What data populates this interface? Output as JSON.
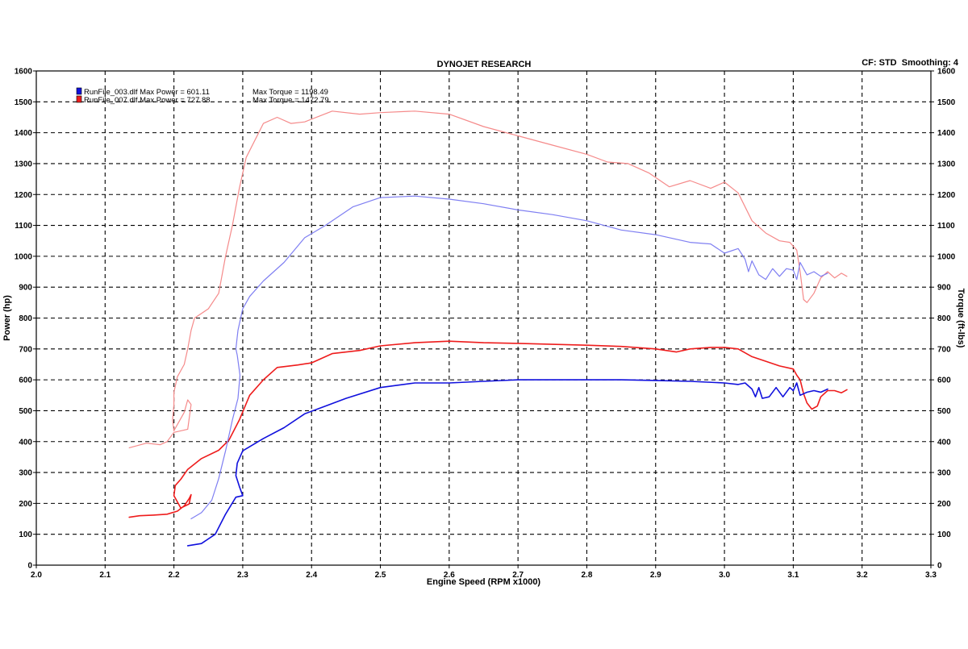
{
  "header": {
    "title": "DYNOJET RESEARCH",
    "corner_info": "CF: STD  Smoothing: 4"
  },
  "chart_data": {
    "type": "line",
    "title": "DYNOJET RESEARCH",
    "xlabel": "Engine Speed (RPM x1000)",
    "ylabel_left": "Power (hp)",
    "ylabel_right": "Torque (ft-lbs)",
    "xlim": [
      2.0,
      3.3
    ],
    "ylim": [
      0,
      1600
    ],
    "xticks": [
      "2.0",
      "2.1",
      "2.2",
      "2.3",
      "2.4",
      "2.5",
      "2.6",
      "2.7",
      "2.8",
      "2.9",
      "3.0",
      "3.1",
      "3.2",
      "3.3"
    ],
    "yticks": [
      "0",
      "100",
      "200",
      "300",
      "400",
      "500",
      "600",
      "700",
      "800",
      "900",
      "1000",
      "1100",
      "1200",
      "1300",
      "1400",
      "1500",
      "1600"
    ],
    "grid": true,
    "legend": {
      "placement": "top-left",
      "entries": [
        {
          "file": "RunFile_003.dlf",
          "power_text": "Max Power = 601.11",
          "torque_text": "Max Torque = 1198.49",
          "color": "#1010dd"
        },
        {
          "file": "RunFile_007.dlf",
          "power_text": "Max Power = 727.88",
          "torque_text": "Max Torque = 1472.79",
          "color": "#ee1c1c"
        }
      ]
    },
    "series": [
      {
        "run": "RunFile_007.dlf",
        "measure": "Power",
        "color": "#ee1c1c",
        "width": 1.6,
        "points": [
          [
            2.135,
            155
          ],
          [
            2.15,
            160
          ],
          [
            2.17,
            162
          ],
          [
            2.19,
            165
          ],
          [
            2.205,
            175
          ],
          [
            2.215,
            192
          ],
          [
            2.222,
            215
          ],
          [
            2.225,
            228
          ],
          [
            2.222,
            198
          ],
          [
            2.21,
            185
          ],
          [
            2.205,
            205
          ],
          [
            2.2,
            225
          ],
          [
            2.202,
            258
          ],
          [
            2.21,
            278
          ],
          [
            2.22,
            310
          ],
          [
            2.24,
            345
          ],
          [
            2.265,
            372
          ],
          [
            2.28,
            405
          ],
          [
            2.295,
            470
          ],
          [
            2.31,
            550
          ],
          [
            2.33,
            600
          ],
          [
            2.35,
            640
          ],
          [
            2.38,
            648
          ],
          [
            2.4,
            655
          ],
          [
            2.43,
            685
          ],
          [
            2.47,
            695
          ],
          [
            2.5,
            710
          ],
          [
            2.55,
            720
          ],
          [
            2.6,
            725
          ],
          [
            2.65,
            720
          ],
          [
            2.7,
            718
          ],
          [
            2.75,
            715
          ],
          [
            2.8,
            712
          ],
          [
            2.85,
            708
          ],
          [
            2.9,
            700
          ],
          [
            2.93,
            690
          ],
          [
            2.95,
            700
          ],
          [
            2.98,
            705
          ],
          [
            3.0,
            705
          ],
          [
            3.02,
            700
          ],
          [
            3.04,
            675
          ],
          [
            3.06,
            660
          ],
          [
            3.08,
            645
          ],
          [
            3.1,
            635
          ],
          [
            3.105,
            615
          ],
          [
            3.11,
            600
          ],
          [
            3.115,
            555
          ],
          [
            3.12,
            525
          ],
          [
            3.127,
            505
          ],
          [
            3.135,
            515
          ],
          [
            3.14,
            545
          ],
          [
            3.15,
            565
          ],
          [
            3.16,
            565
          ],
          [
            3.17,
            558
          ],
          [
            3.178,
            568
          ]
        ]
      },
      {
        "run": "RunFile_007.dlf",
        "measure": "Torque",
        "color": "#f58a8a",
        "width": 1.2,
        "points": [
          [
            2.135,
            380
          ],
          [
            2.16,
            395
          ],
          [
            2.18,
            390
          ],
          [
            2.19,
            400
          ],
          [
            2.2,
            430
          ],
          [
            2.22,
            440
          ],
          [
            2.225,
            520
          ],
          [
            2.22,
            535
          ],
          [
            2.215,
            495
          ],
          [
            2.2,
            435
          ],
          [
            2.198,
            470
          ],
          [
            2.2,
            520
          ],
          [
            2.2,
            560
          ],
          [
            2.205,
            610
          ],
          [
            2.215,
            650
          ],
          [
            2.22,
            700
          ],
          [
            2.225,
            760
          ],
          [
            2.23,
            800
          ],
          [
            2.25,
            830
          ],
          [
            2.265,
            880
          ],
          [
            2.275,
            1000
          ],
          [
            2.285,
            1100
          ],
          [
            2.295,
            1220
          ],
          [
            2.305,
            1320
          ],
          [
            2.33,
            1430
          ],
          [
            2.35,
            1450
          ],
          [
            2.37,
            1430
          ],
          [
            2.39,
            1435
          ],
          [
            2.43,
            1470
          ],
          [
            2.47,
            1460
          ],
          [
            2.5,
            1465
          ],
          [
            2.55,
            1470
          ],
          [
            2.6,
            1460
          ],
          [
            2.65,
            1420
          ],
          [
            2.7,
            1390
          ],
          [
            2.75,
            1360
          ],
          [
            2.8,
            1330
          ],
          [
            2.83,
            1305
          ],
          [
            2.86,
            1300
          ],
          [
            2.89,
            1270
          ],
          [
            2.92,
            1225
          ],
          [
            2.95,
            1245
          ],
          [
            2.98,
            1220
          ],
          [
            3.0,
            1240
          ],
          [
            3.02,
            1205
          ],
          [
            3.04,
            1115
          ],
          [
            3.06,
            1075
          ],
          [
            3.08,
            1050
          ],
          [
            3.095,
            1045
          ],
          [
            3.105,
            1020
          ],
          [
            3.11,
            950
          ],
          [
            3.115,
            860
          ],
          [
            3.12,
            850
          ],
          [
            3.13,
            880
          ],
          [
            3.14,
            930
          ],
          [
            3.15,
            950
          ],
          [
            3.16,
            930
          ],
          [
            3.17,
            945
          ],
          [
            3.178,
            935
          ]
        ]
      },
      {
        "run": "RunFile_003.dlf",
        "measure": "Power",
        "color": "#1010dd",
        "width": 1.6,
        "points": [
          [
            2.22,
            63
          ],
          [
            2.24,
            70
          ],
          [
            2.26,
            100
          ],
          [
            2.275,
            165
          ],
          [
            2.29,
            220
          ],
          [
            2.3,
            225
          ],
          [
            2.295,
            255
          ],
          [
            2.29,
            290
          ],
          [
            2.292,
            330
          ],
          [
            2.3,
            370
          ],
          [
            2.33,
            410
          ],
          [
            2.36,
            445
          ],
          [
            2.39,
            490
          ],
          [
            2.42,
            515
          ],
          [
            2.45,
            540
          ],
          [
            2.5,
            575
          ],
          [
            2.55,
            590
          ],
          [
            2.6,
            590
          ],
          [
            2.65,
            595
          ],
          [
            2.7,
            600
          ],
          [
            2.75,
            600
          ],
          [
            2.8,
            600
          ],
          [
            2.85,
            600
          ],
          [
            2.9,
            598
          ],
          [
            2.95,
            595
          ],
          [
            3.0,
            590
          ],
          [
            3.02,
            585
          ],
          [
            3.03,
            590
          ],
          [
            3.04,
            570
          ],
          [
            3.045,
            545
          ],
          [
            3.05,
            575
          ],
          [
            3.055,
            540
          ],
          [
            3.065,
            545
          ],
          [
            3.075,
            575
          ],
          [
            3.085,
            545
          ],
          [
            3.095,
            575
          ],
          [
            3.1,
            565
          ],
          [
            3.105,
            590
          ],
          [
            3.11,
            550
          ],
          [
            3.12,
            560
          ],
          [
            3.13,
            565
          ],
          [
            3.14,
            560
          ],
          [
            3.15,
            570
          ]
        ]
      },
      {
        "run": "RunFile_003.dlf",
        "measure": "Torque",
        "color": "#7f7ff2",
        "width": 1.2,
        "points": [
          [
            2.225,
            150
          ],
          [
            2.24,
            170
          ],
          [
            2.255,
            210
          ],
          [
            2.265,
            280
          ],
          [
            2.275,
            370
          ],
          [
            2.285,
            470
          ],
          [
            2.293,
            540
          ],
          [
            2.296,
            615
          ],
          [
            2.292,
            680
          ],
          [
            2.29,
            700
          ],
          [
            2.293,
            760
          ],
          [
            2.3,
            830
          ],
          [
            2.31,
            870
          ],
          [
            2.33,
            920
          ],
          [
            2.36,
            980
          ],
          [
            2.39,
            1060
          ],
          [
            2.42,
            1100
          ],
          [
            2.46,
            1160
          ],
          [
            2.5,
            1190
          ],
          [
            2.55,
            1195
          ],
          [
            2.6,
            1185
          ],
          [
            2.65,
            1170
          ],
          [
            2.7,
            1150
          ],
          [
            2.75,
            1135
          ],
          [
            2.8,
            1115
          ],
          [
            2.85,
            1085
          ],
          [
            2.9,
            1070
          ],
          [
            2.95,
            1045
          ],
          [
            2.98,
            1040
          ],
          [
            3.0,
            1010
          ],
          [
            3.02,
            1025
          ],
          [
            3.03,
            990
          ],
          [
            3.035,
            950
          ],
          [
            3.04,
            985
          ],
          [
            3.05,
            940
          ],
          [
            3.06,
            925
          ],
          [
            3.07,
            960
          ],
          [
            3.08,
            935
          ],
          [
            3.09,
            960
          ],
          [
            3.1,
            955
          ],
          [
            3.105,
            925
          ],
          [
            3.11,
            980
          ],
          [
            3.12,
            940
          ],
          [
            3.13,
            950
          ],
          [
            3.14,
            935
          ],
          [
            3.15,
            945
          ]
        ]
      }
    ]
  }
}
